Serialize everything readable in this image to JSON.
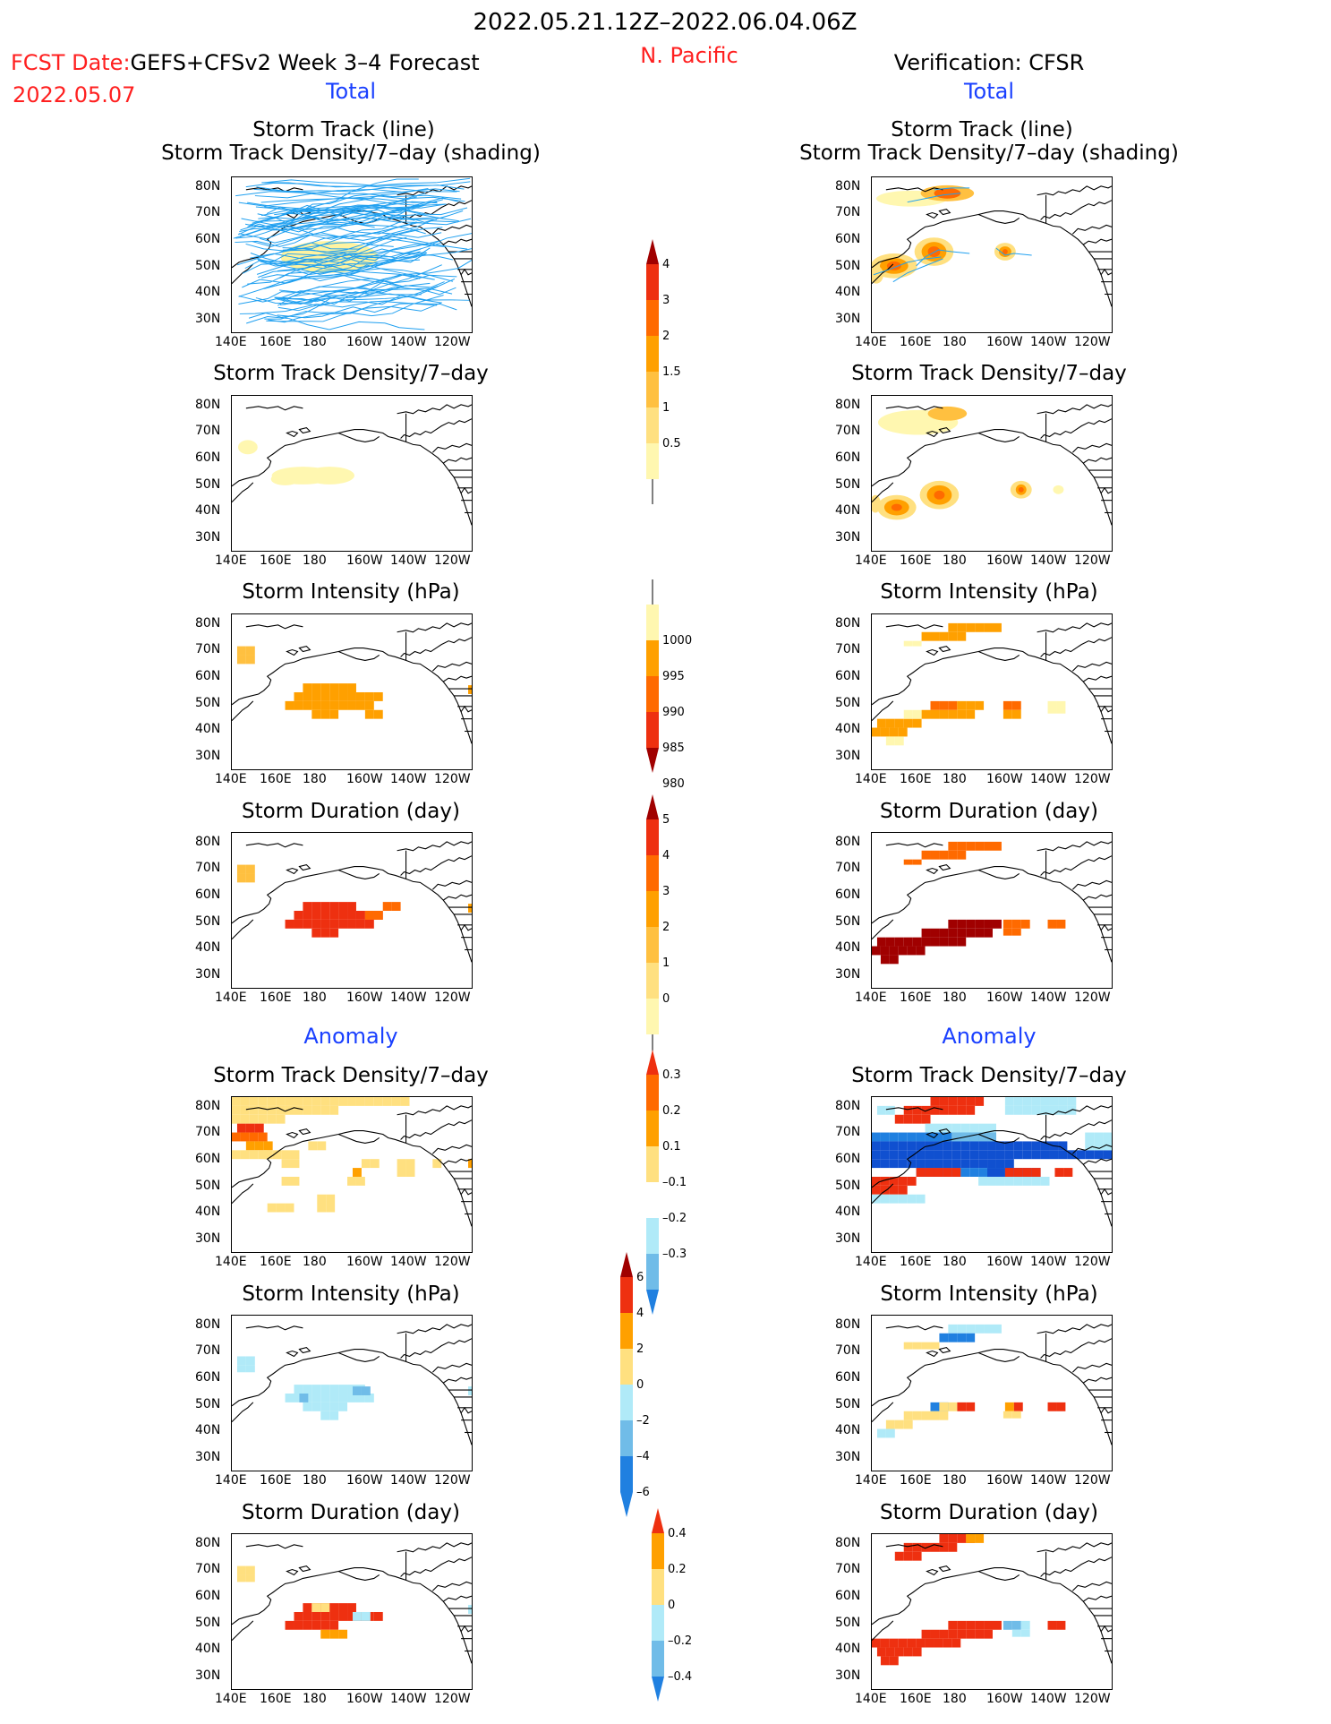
{
  "header": {
    "date_range": "2022.05.21.12Z–2022.06.04.06Z",
    "region": "N. Pacific",
    "fcst_prefix": "FCST Date:",
    "fcst_title": "GEFS+CFSv2 Week 3–4 Forecast",
    "fcst_date": "2022.05.07",
    "verif_title": "Verification: CFSR",
    "total_label": "Total",
    "anomaly_label": "Anomaly"
  },
  "panel_titles": {
    "track_line": "Storm Track (line)",
    "track_shading": "Storm Track Density/7–day (shading)",
    "density": "Storm Track Density/7–day",
    "intensity": "Storm Intensity (hPa)",
    "duration": "Storm Duration (day)"
  },
  "axes": {
    "lat_labels": [
      "80N",
      "70N",
      "60N",
      "50N",
      "40N",
      "30N"
    ],
    "lon_labels": [
      "140E",
      "160E",
      "180",
      "160W",
      "140W",
      "120W"
    ]
  },
  "colorbars": {
    "density": [
      "4",
      "3",
      "2",
      "1.5",
      "1",
      "0.5"
    ],
    "intensity": [
      "1000",
      "995",
      "990",
      "985",
      "980"
    ],
    "duration": [
      "5",
      "4",
      "3",
      "2",
      "1",
      "0"
    ],
    "density_anom": [
      "0.3",
      "0.2",
      "0.1",
      "–0.1",
      "–0.2",
      "–0.3"
    ],
    "intensity_anom": [
      "6",
      "4",
      "2",
      "0",
      "–2",
      "–4",
      "–6"
    ],
    "duration_anom": [
      "0.4",
      "0.2",
      "0",
      "–0.2",
      "–0.4"
    ]
  },
  "colors": {
    "pale_yellow": "#fff7b0",
    "yellow": "#ffe080",
    "light_orange": "#ffc040",
    "orange": "#ffa000",
    "dark_orange": "#ff6a00",
    "red": "#ee3010",
    "dark_red": "#a00000",
    "light_blue": "#b0eaf8",
    "mid_blue": "#70bce8",
    "blue": "#2080e0",
    "dark_blue": "#1050d0",
    "track_line": "#20a0f0"
  }
}
